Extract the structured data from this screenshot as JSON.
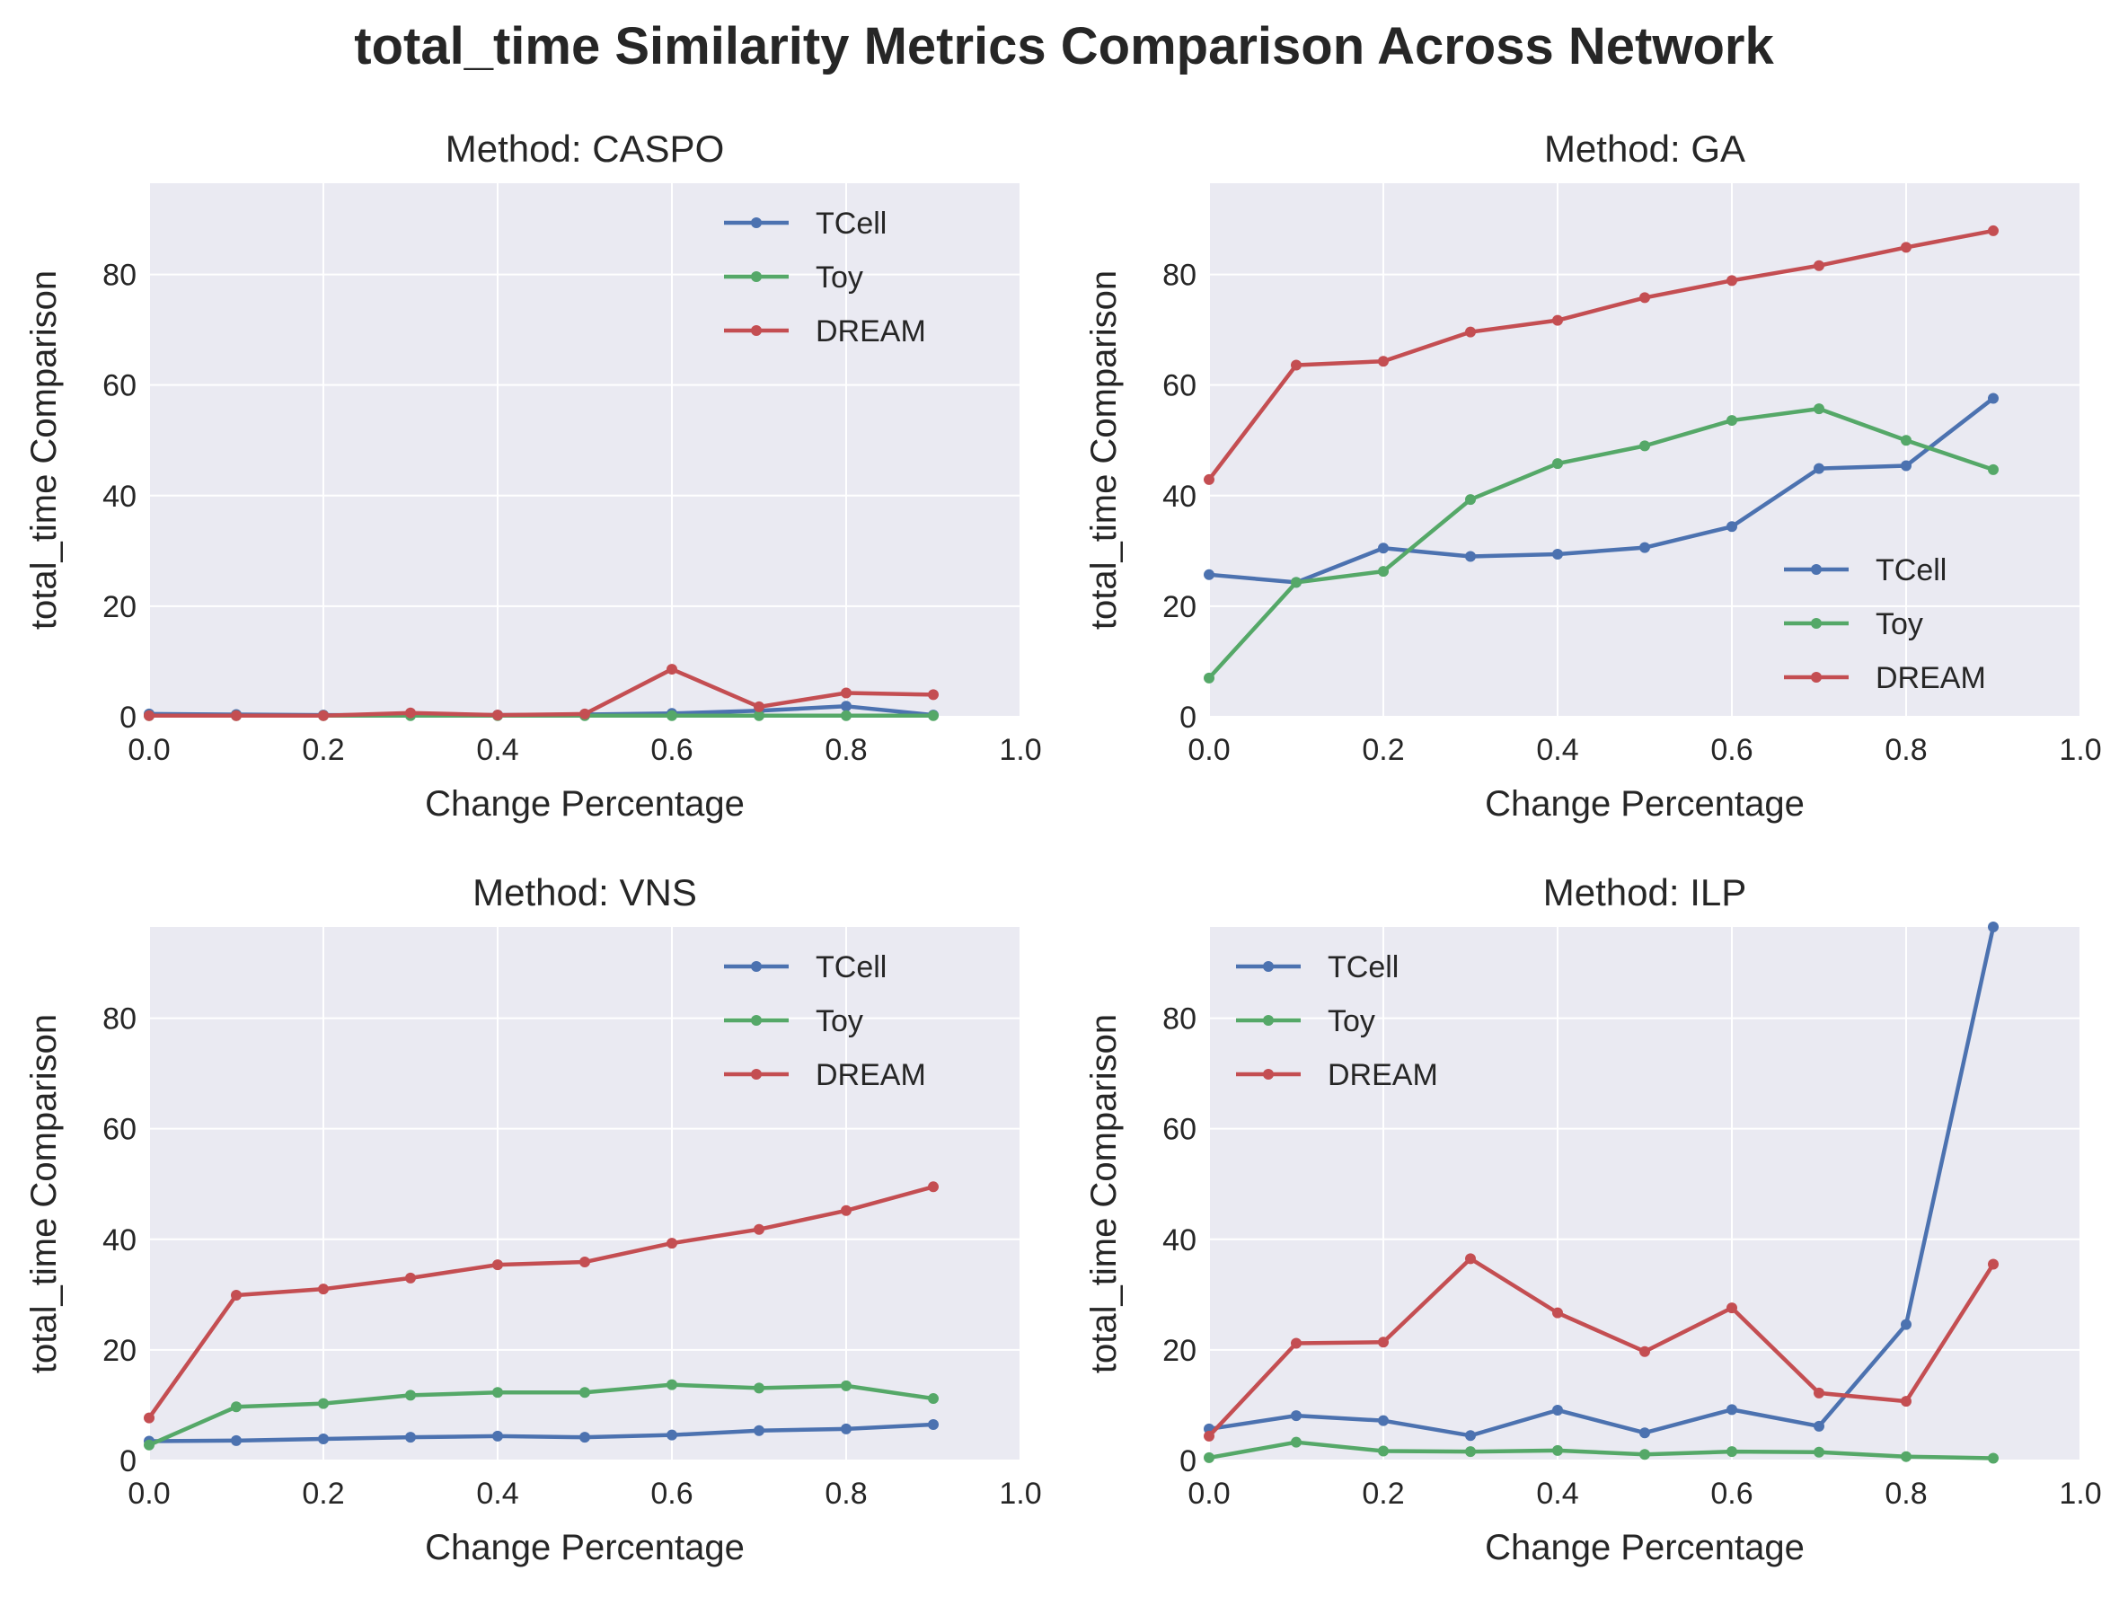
{
  "title": "total_time Similarity Metrics Comparison Across Network",
  "colors": {
    "TCell": "#4c72b0",
    "Toy": "#55a868",
    "DREAM": "#c44e52",
    "axes_bg": "#eaeaf2",
    "grid": "#ffffff"
  },
  "chart_data": [
    {
      "type": "line",
      "title": "Method: CASPO",
      "xlabel": "Change Percentage",
      "ylabel": "total_time Comparison",
      "xlim": [
        0.0,
        1.0
      ],
      "ylim": [
        0,
        96.5
      ],
      "xticks": [
        "0.0",
        "0.2",
        "0.4",
        "0.6",
        "0.8",
        "1.0"
      ],
      "yticks": [
        "0",
        "20",
        "40",
        "60",
        "80"
      ],
      "grid": true,
      "legend_position": "upper right",
      "x": [
        0.0,
        0.1,
        0.2,
        0.3,
        0.4,
        0.5,
        0.6,
        0.7,
        0.8,
        0.9
      ],
      "series": [
        {
          "name": "TCell",
          "values": [
            0.5,
            0.4,
            0.3,
            0.3,
            0.3,
            0.4,
            0.6,
            1.1,
            1.9,
            0.3
          ]
        },
        {
          "name": "Toy",
          "values": [
            0.2,
            0.2,
            0.2,
            0.2,
            0.2,
            0.2,
            0.2,
            0.2,
            0.2,
            0.2
          ]
        },
        {
          "name": "DREAM",
          "values": [
            0.2,
            0.2,
            0.2,
            0.7,
            0.3,
            0.5,
            8.6,
            1.8,
            4.3,
            4.0
          ]
        }
      ]
    },
    {
      "type": "line",
      "title": "Method: GA",
      "xlabel": "Change Percentage",
      "ylabel": "total_time Comparison",
      "xlim": [
        0.0,
        1.0
      ],
      "ylim": [
        0,
        96.5
      ],
      "xticks": [
        "0.0",
        "0.2",
        "0.4",
        "0.6",
        "0.8",
        "1.0"
      ],
      "yticks": [
        "0",
        "20",
        "40",
        "60",
        "80"
      ],
      "grid": true,
      "legend_position": "lower right",
      "x": [
        0.0,
        0.1,
        0.2,
        0.3,
        0.4,
        0.5,
        0.6,
        0.7,
        0.8,
        0.9
      ],
      "series": [
        {
          "name": "TCell",
          "values": [
            25.7,
            24.3,
            30.5,
            29.0,
            29.4,
            30.6,
            34.4,
            44.9,
            45.4,
            57.6
          ]
        },
        {
          "name": "Toy",
          "values": [
            7.0,
            24.3,
            26.3,
            39.3,
            45.8,
            49.0,
            53.6,
            55.7,
            50.0,
            44.7
          ]
        },
        {
          "name": "DREAM",
          "values": [
            42.9,
            63.6,
            64.3,
            69.6,
            71.7,
            75.8,
            78.9,
            81.6,
            84.9,
            87.9
          ]
        }
      ]
    },
    {
      "type": "line",
      "title": "Method: VNS",
      "xlabel": "Change Percentage",
      "ylabel": "total_time Comparison",
      "xlim": [
        0.0,
        1.0
      ],
      "ylim": [
        0,
        96.5
      ],
      "xticks": [
        "0.0",
        "0.2",
        "0.4",
        "0.6",
        "0.8",
        "1.0"
      ],
      "yticks": [
        "0",
        "20",
        "40",
        "60",
        "80"
      ],
      "grid": true,
      "legend_position": "upper right",
      "x": [
        0.0,
        0.1,
        0.2,
        0.3,
        0.4,
        0.5,
        0.6,
        0.7,
        0.8,
        0.9
      ],
      "series": [
        {
          "name": "TCell",
          "values": [
            3.5,
            3.6,
            3.9,
            4.2,
            4.4,
            4.2,
            4.6,
            5.4,
            5.7,
            6.5
          ]
        },
        {
          "name": "Toy",
          "values": [
            2.8,
            9.7,
            10.3,
            11.8,
            12.3,
            12.3,
            13.7,
            13.1,
            13.5,
            11.2
          ]
        },
        {
          "name": "DREAM",
          "values": [
            7.7,
            29.9,
            31.0,
            33.0,
            35.4,
            35.9,
            39.3,
            41.8,
            45.2,
            49.5
          ]
        }
      ]
    },
    {
      "type": "line",
      "title": "Method: ILP",
      "xlabel": "Change Percentage",
      "ylabel": "total_time Comparison",
      "xlim": [
        0.0,
        1.0
      ],
      "ylim": [
        0,
        96.5
      ],
      "xticks": [
        "0.0",
        "0.2",
        "0.4",
        "0.6",
        "0.8",
        "1.0"
      ],
      "yticks": [
        "0",
        "20",
        "40",
        "60",
        "80"
      ],
      "grid": true,
      "legend_position": "upper left",
      "x": [
        0.0,
        0.1,
        0.2,
        0.3,
        0.4,
        0.5,
        0.6,
        0.7,
        0.8,
        0.9
      ],
      "series": [
        {
          "name": "TCell",
          "values": [
            5.7,
            8.1,
            7.2,
            4.5,
            9.1,
            5.0,
            9.2,
            6.2,
            24.6,
            96.5
          ]
        },
        {
          "name": "Toy",
          "values": [
            0.5,
            3.3,
            1.7,
            1.6,
            1.8,
            1.1,
            1.6,
            1.5,
            0.7,
            0.4
          ]
        },
        {
          "name": "DREAM",
          "values": [
            4.4,
            21.2,
            21.4,
            36.5,
            26.7,
            19.7,
            27.6,
            12.2,
            10.7,
            35.5
          ]
        }
      ]
    }
  ]
}
